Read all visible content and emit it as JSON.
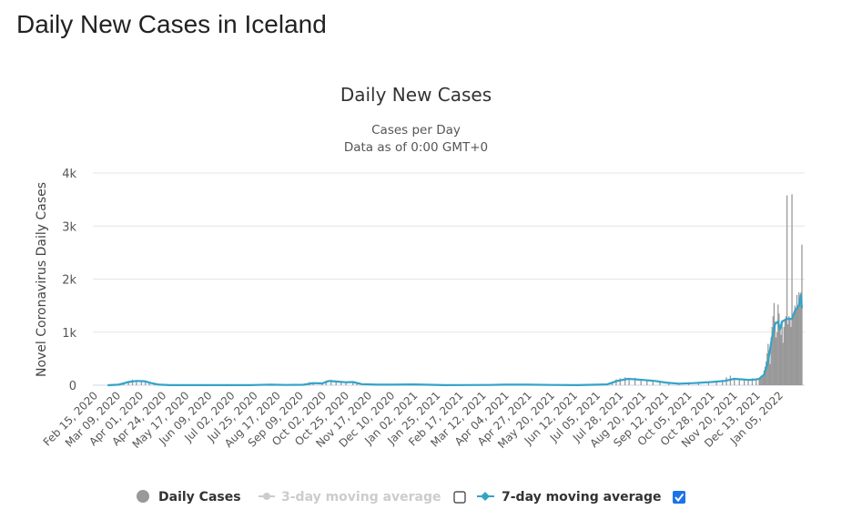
{
  "page": {
    "title": "Daily New Cases in Iceland"
  },
  "chart_data": {
    "type": "bar",
    "title": "Daily New Cases",
    "subtitle": [
      "Cases per Day",
      "Data as of 0:00 GMT+0"
    ],
    "ylabel": "Novel Coronavirus Daily Cases",
    "xlabel": "",
    "ylim": [
      0,
      4000
    ],
    "xlim": [
      "2020-02-15",
      "2022-01-28"
    ],
    "yticks": [
      {
        "v": 0,
        "label": "0"
      },
      {
        "v": 1000,
        "label": "1k"
      },
      {
        "v": 2000,
        "label": "2k"
      },
      {
        "v": 3000,
        "label": "3k"
      },
      {
        "v": 4000,
        "label": "4k"
      }
    ],
    "grid": true,
    "legend_placement": "bottom",
    "colors": {
      "bars": "#999999",
      "ma7": "#33a3c9",
      "ma3_disabled": "#cccccc",
      "checkbox": "#1a73e8"
    },
    "xticks": [
      "Feb 15, 2020",
      "Mar 09, 2020",
      "Apr 01, 2020",
      "Apr 24, 2020",
      "May 17, 2020",
      "Jun 09, 2020",
      "Jul 02, 2020",
      "Jul 25, 2020",
      "Aug 17, 2020",
      "Sep 09, 2020",
      "Oct 02, 2020",
      "Oct 25, 2020",
      "Nov 17, 2020",
      "Dec 10, 2020",
      "Jan 02, 2021",
      "Jan 25, 2021",
      "Feb 17, 2021",
      "Mar 12, 2021",
      "Apr 04, 2021",
      "Apr 27, 2021",
      "May 20, 2021",
      "Jun 12, 2021",
      "Jul 05, 2021",
      "Jul 28, 2021",
      "Aug 20, 2021",
      "Sep 12, 2021",
      "Oct 05, 2021",
      "Oct 28, 2021",
      "Nov 20, 2021",
      "Dec 13, 2021",
      "Jan 05, 2022"
    ],
    "xtick_dates": [
      "2020-02-15",
      "2020-03-09",
      "2020-04-01",
      "2020-04-24",
      "2020-05-17",
      "2020-06-09",
      "2020-07-02",
      "2020-07-25",
      "2020-08-17",
      "2020-09-09",
      "2020-10-02",
      "2020-10-25",
      "2020-11-17",
      "2020-12-10",
      "2021-01-02",
      "2021-01-25",
      "2021-02-17",
      "2021-03-12",
      "2021-04-04",
      "2021-04-27",
      "2021-05-20",
      "2021-06-12",
      "2021-07-05",
      "2021-07-28",
      "2021-08-20",
      "2021-09-12",
      "2021-10-05",
      "2021-10-28",
      "2021-11-20",
      "2021-12-13",
      "2022-01-05"
    ],
    "series": [
      {
        "name": "Daily Cases",
        "type": "bar",
        "points": [
          [
            "2020-03-10",
            10
          ],
          [
            "2020-03-15",
            40
          ],
          [
            "2020-03-20",
            80
          ],
          [
            "2020-03-24",
            106
          ],
          [
            "2020-03-28",
            70
          ],
          [
            "2020-04-02",
            90
          ],
          [
            "2020-04-06",
            60
          ],
          [
            "2020-04-10",
            40
          ],
          [
            "2020-04-15",
            20
          ],
          [
            "2020-04-20",
            8
          ],
          [
            "2020-07-28",
            8
          ],
          [
            "2020-08-05",
            12
          ],
          [
            "2020-08-15",
            6
          ],
          [
            "2020-09-18",
            60
          ],
          [
            "2020-09-22",
            40
          ],
          [
            "2020-10-01",
            30
          ],
          [
            "2020-10-05",
            90
          ],
          [
            "2020-10-10",
            100
          ],
          [
            "2020-10-15",
            70
          ],
          [
            "2020-10-20",
            60
          ],
          [
            "2020-10-25",
            50
          ],
          [
            "2020-11-01",
            70
          ],
          [
            "2020-11-05",
            40
          ],
          [
            "2020-11-12",
            20
          ],
          [
            "2020-12-05",
            10
          ],
          [
            "2021-01-01",
            15
          ],
          [
            "2021-04-01",
            15
          ],
          [
            "2021-04-25",
            10
          ],
          [
            "2021-07-20",
            40
          ],
          [
            "2021-07-24",
            110
          ],
          [
            "2021-07-28",
            130
          ],
          [
            "2021-08-02",
            150
          ],
          [
            "2021-08-06",
            120
          ],
          [
            "2021-08-12",
            140
          ],
          [
            "2021-08-18",
            100
          ],
          [
            "2021-08-24",
            90
          ],
          [
            "2021-08-30",
            70
          ],
          [
            "2021-09-06",
            50
          ],
          [
            "2021-09-15",
            30
          ],
          [
            "2021-09-25",
            30
          ],
          [
            "2021-10-05",
            40
          ],
          [
            "2021-10-15",
            50
          ],
          [
            "2021-10-25",
            60
          ],
          [
            "2021-11-02",
            80
          ],
          [
            "2021-11-08",
            100
          ],
          [
            "2021-11-12",
            150
          ],
          [
            "2021-11-16",
            180
          ],
          [
            "2021-11-20",
            140
          ],
          [
            "2021-11-25",
            110
          ],
          [
            "2021-11-30",
            120
          ],
          [
            "2021-12-04",
            90
          ],
          [
            "2021-12-08",
            130
          ],
          [
            "2021-12-12",
            110
          ],
          [
            "2021-12-15",
            120
          ],
          [
            "2021-12-16",
            150
          ],
          [
            "2021-12-17",
            180
          ],
          [
            "2021-12-18",
            140
          ],
          [
            "2021-12-19",
            200
          ],
          [
            "2021-12-20",
            280
          ],
          [
            "2021-12-21",
            350
          ],
          [
            "2021-12-22",
            450
          ],
          [
            "2021-12-23",
            600
          ],
          [
            "2021-12-24",
            780
          ],
          [
            "2021-12-25",
            500
          ],
          [
            "2021-12-26",
            400
          ],
          [
            "2021-12-27",
            900
          ],
          [
            "2021-12-28",
            1100
          ],
          [
            "2021-12-29",
            1300
          ],
          [
            "2021-12-30",
            1550
          ],
          [
            "2021-12-31",
            1200
          ],
          [
            "2022-01-01",
            900
          ],
          [
            "2022-01-02",
            1000
          ],
          [
            "2022-01-03",
            1520
          ],
          [
            "2022-01-04",
            1350
          ],
          [
            "2022-01-05",
            1100
          ],
          [
            "2022-01-06",
            950
          ],
          [
            "2022-01-07",
            1200
          ],
          [
            "2022-01-08",
            800
          ],
          [
            "2022-01-09",
            1100
          ],
          [
            "2022-01-10",
            1250
          ],
          [
            "2022-01-11",
            1300
          ],
          [
            "2022-01-12",
            3580
          ],
          [
            "2022-01-13",
            1150
          ],
          [
            "2022-01-14",
            1300
          ],
          [
            "2022-01-15",
            1250
          ],
          [
            "2022-01-16",
            1100
          ],
          [
            "2022-01-17",
            3600
          ],
          [
            "2022-01-18",
            1300
          ],
          [
            "2022-01-19",
            1350
          ],
          [
            "2022-01-20",
            1500
          ],
          [
            "2022-01-21",
            1400
          ],
          [
            "2022-01-22",
            1700
          ],
          [
            "2022-01-23",
            1500
          ],
          [
            "2022-01-24",
            1750
          ],
          [
            "2022-01-25",
            1650
          ],
          [
            "2022-01-26",
            1750
          ],
          [
            "2022-01-27",
            2650
          ]
        ]
      },
      {
        "name": "7-day moving average",
        "type": "line",
        "points": [
          [
            "2020-02-28",
            0
          ],
          [
            "2020-03-10",
            10
          ],
          [
            "2020-03-20",
            60
          ],
          [
            "2020-03-28",
            80
          ],
          [
            "2020-04-05",
            75
          ],
          [
            "2020-04-12",
            40
          ],
          [
            "2020-04-20",
            10
          ],
          [
            "2020-05-01",
            1
          ],
          [
            "2020-07-20",
            2
          ],
          [
            "2020-07-28",
            6
          ],
          [
            "2020-08-10",
            10
          ],
          [
            "2020-08-25",
            5
          ],
          [
            "2020-09-12",
            8
          ],
          [
            "2020-09-22",
            40
          ],
          [
            "2020-10-01",
            35
          ],
          [
            "2020-10-08",
            80
          ],
          [
            "2020-10-15",
            70
          ],
          [
            "2020-10-25",
            55
          ],
          [
            "2020-11-01",
            60
          ],
          [
            "2020-11-10",
            20
          ],
          [
            "2020-11-25",
            10
          ],
          [
            "2020-12-10",
            10
          ],
          [
            "2021-01-01",
            15
          ],
          [
            "2021-02-01",
            2
          ],
          [
            "2021-03-20",
            5
          ],
          [
            "2021-04-01",
            10
          ],
          [
            "2021-04-27",
            10
          ],
          [
            "2021-05-20",
            5
          ],
          [
            "2021-06-15",
            2
          ],
          [
            "2021-07-15",
            15
          ],
          [
            "2021-07-25",
            80
          ],
          [
            "2021-08-05",
            120
          ],
          [
            "2021-08-20",
            100
          ],
          [
            "2021-09-01",
            80
          ],
          [
            "2021-09-12",
            50
          ],
          [
            "2021-09-25",
            30
          ],
          [
            "2021-10-10",
            40
          ],
          [
            "2021-10-28",
            60
          ],
          [
            "2021-11-10",
            80
          ],
          [
            "2021-11-20",
            120
          ],
          [
            "2021-11-28",
            110
          ],
          [
            "2021-12-05",
            100
          ],
          [
            "2021-12-12",
            110
          ],
          [
            "2021-12-15",
            120
          ],
          [
            "2021-12-20",
            200
          ],
          [
            "2021-12-24",
            450
          ],
          [
            "2021-12-28",
            900
          ],
          [
            "2021-12-31",
            1150
          ],
          [
            "2022-01-03",
            1200
          ],
          [
            "2022-01-05",
            1050
          ],
          [
            "2022-01-07",
            1200
          ],
          [
            "2022-01-12",
            1250
          ],
          [
            "2022-01-17",
            1250
          ],
          [
            "2022-01-20",
            1400
          ],
          [
            "2022-01-24",
            1500
          ],
          [
            "2022-01-26",
            1700
          ],
          [
            "2022-01-27",
            1450
          ]
        ]
      }
    ],
    "legend": [
      {
        "label": "Daily Cases",
        "enabled": true
      },
      {
        "label": "3-day moving average",
        "enabled": false,
        "checked": false
      },
      {
        "label": "7-day moving average",
        "enabled": true,
        "checked": true
      }
    ]
  }
}
